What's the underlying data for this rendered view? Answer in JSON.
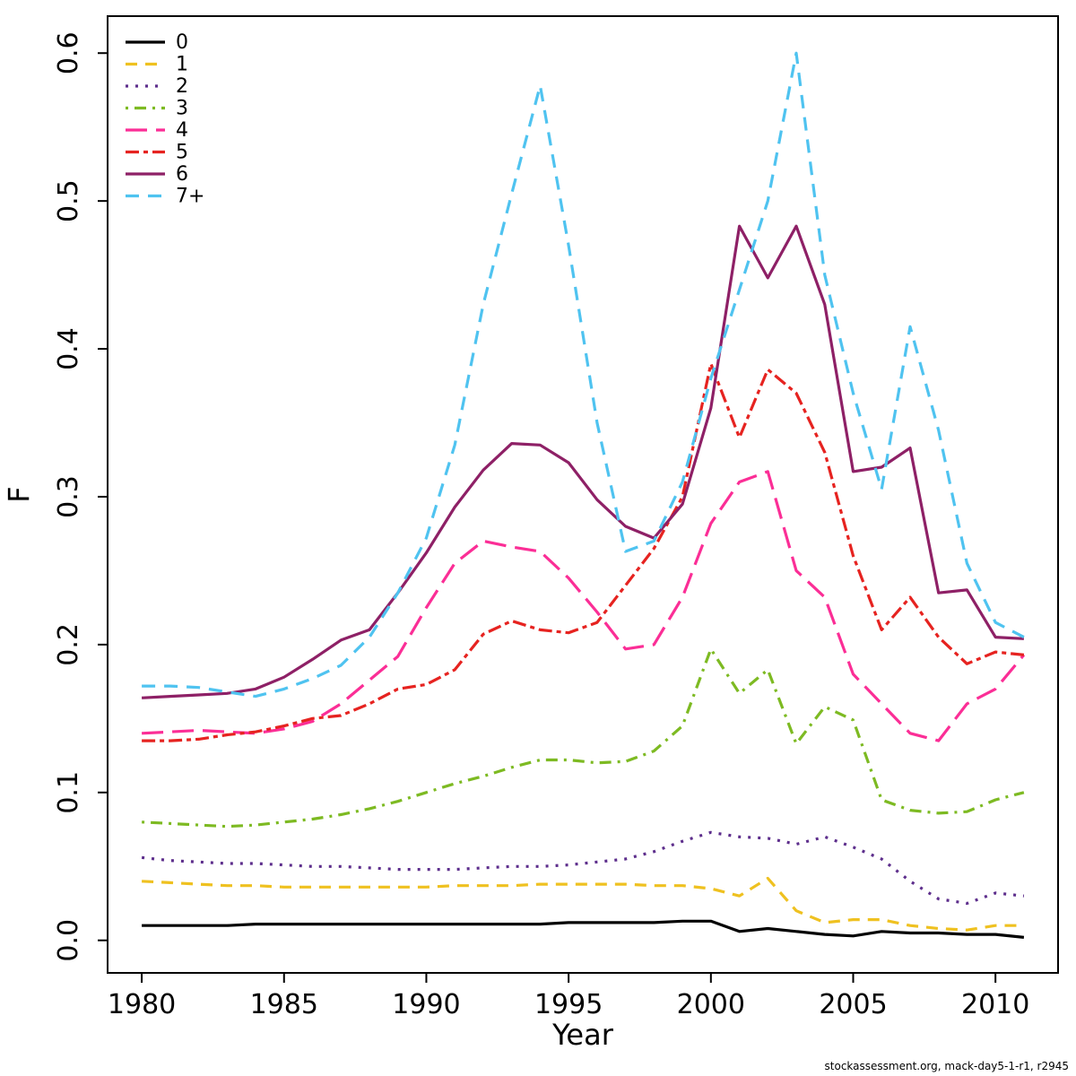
{
  "page": {
    "background": "#ffffff"
  },
  "footer": {
    "text": "stockassessment.org, mack-day5-1-r1, r2945"
  },
  "chart_data": {
    "type": "line",
    "title": "",
    "xlabel": "Year",
    "ylabel": "F",
    "xlim": [
      1978.8,
      2012.2
    ],
    "ylim": [
      -0.022,
      0.625
    ],
    "grid": false,
    "legend_position": "top-left",
    "x_ticks": [
      1980,
      1985,
      1990,
      1995,
      2000,
      2005,
      2010
    ],
    "y_ticks": [
      {
        "v": 0.0,
        "label": "0.0"
      },
      {
        "v": 0.1,
        "label": "0.1"
      },
      {
        "v": 0.2,
        "label": "0.2"
      },
      {
        "v": 0.3,
        "label": "0.3"
      },
      {
        "v": 0.4,
        "label": "0.4"
      },
      {
        "v": 0.5,
        "label": "0.5"
      },
      {
        "v": 0.6,
        "label": "0.6"
      }
    ],
    "x": [
      1980,
      1981,
      1982,
      1983,
      1984,
      1985,
      1986,
      1987,
      1988,
      1989,
      1990,
      1991,
      1992,
      1993,
      1994,
      1995,
      1996,
      1997,
      1998,
      1999,
      2000,
      2001,
      2002,
      2003,
      2004,
      2005,
      2006,
      2007,
      2008,
      2009,
      2010,
      2011
    ],
    "series": [
      {
        "name": "0",
        "color": "#000000",
        "dash": "",
        "width": 3.2,
        "values": [
          0.01,
          0.01,
          0.01,
          0.01,
          0.011,
          0.011,
          0.011,
          0.011,
          0.011,
          0.011,
          0.011,
          0.011,
          0.011,
          0.011,
          0.011,
          0.012,
          0.012,
          0.012,
          0.012,
          0.013,
          0.013,
          0.006,
          0.008,
          0.006,
          0.004,
          0.003,
          0.006,
          0.005,
          0.005,
          0.004,
          0.004,
          0.002
        ]
      },
      {
        "name": "1",
        "color": "#EFC120",
        "dash": "13,9",
        "width": 3.2,
        "values": [
          0.04,
          0.039,
          0.038,
          0.037,
          0.037,
          0.036,
          0.036,
          0.036,
          0.036,
          0.036,
          0.036,
          0.037,
          0.037,
          0.037,
          0.038,
          0.038,
          0.038,
          0.038,
          0.037,
          0.037,
          0.035,
          0.03,
          0.042,
          0.02,
          0.012,
          0.014,
          0.014,
          0.01,
          0.008,
          0.007,
          0.01,
          0.01
        ]
      },
      {
        "name": "2",
        "color": "#5D2E8C",
        "dash": "3,8",
        "width": 3.2,
        "values": [
          0.056,
          0.054,
          0.053,
          0.052,
          0.052,
          0.051,
          0.05,
          0.05,
          0.049,
          0.048,
          0.048,
          0.048,
          0.049,
          0.05,
          0.05,
          0.051,
          0.053,
          0.055,
          0.06,
          0.067,
          0.073,
          0.07,
          0.069,
          0.065,
          0.07,
          0.063,
          0.055,
          0.04,
          0.028,
          0.025,
          0.032,
          0.03
        ]
      },
      {
        "name": "3",
        "color": "#7DBA22",
        "dash": "3,7,13,7",
        "width": 3.2,
        "values": [
          0.08,
          0.079,
          0.078,
          0.077,
          0.078,
          0.08,
          0.082,
          0.085,
          0.089,
          0.094,
          0.1,
          0.106,
          0.111,
          0.117,
          0.122,
          0.122,
          0.12,
          0.121,
          0.128,
          0.145,
          0.197,
          0.167,
          0.183,
          0.133,
          0.158,
          0.149,
          0.095,
          0.088,
          0.086,
          0.087,
          0.095,
          0.1
        ]
      },
      {
        "name": "4",
        "color": "#FB2E96",
        "dash": "24,10",
        "width": 3.2,
        "values": [
          0.14,
          0.141,
          0.142,
          0.141,
          0.14,
          0.143,
          0.148,
          0.16,
          0.176,
          0.192,
          0.225,
          0.255,
          0.27,
          0.266,
          0.263,
          0.245,
          0.222,
          0.197,
          0.2,
          0.232,
          0.282,
          0.31,
          0.317,
          0.25,
          0.232,
          0.18,
          0.16,
          0.14,
          0.135,
          0.16,
          0.17,
          0.193
        ]
      },
      {
        "name": "5",
        "color": "#E62320",
        "dash": "15,5,5,5",
        "width": 3.2,
        "values": [
          0.135,
          0.135,
          0.136,
          0.139,
          0.141,
          0.145,
          0.15,
          0.152,
          0.16,
          0.17,
          0.173,
          0.183,
          0.207,
          0.216,
          0.21,
          0.208,
          0.215,
          0.24,
          0.265,
          0.3,
          0.39,
          0.34,
          0.386,
          0.37,
          0.33,
          0.26,
          0.21,
          0.232,
          0.205,
          0.187,
          0.195,
          0.193
        ]
      },
      {
        "name": "6",
        "color": "#8E2066",
        "dash": "",
        "width": 3.2,
        "values": [
          0.164,
          0.165,
          0.166,
          0.167,
          0.17,
          0.178,
          0.19,
          0.203,
          0.21,
          0.235,
          0.262,
          0.293,
          0.318,
          0.336,
          0.335,
          0.323,
          0.298,
          0.28,
          0.272,
          0.295,
          0.36,
          0.483,
          0.448,
          0.483,
          0.43,
          0.317,
          0.32,
          0.333,
          0.235,
          0.237,
          0.205,
          0.204
        ]
      },
      {
        "name": "7+",
        "color": "#4FC3F0",
        "dash": "15,10",
        "width": 3.2,
        "values": [
          0.172,
          0.172,
          0.171,
          0.168,
          0.165,
          0.17,
          0.177,
          0.186,
          0.205,
          0.235,
          0.272,
          0.335,
          0.43,
          0.505,
          0.578,
          0.47,
          0.35,
          0.263,
          0.27,
          0.31,
          0.38,
          0.44,
          0.5,
          0.6,
          0.45,
          0.37,
          0.305,
          0.415,
          0.345,
          0.255,
          0.215,
          0.205
        ]
      }
    ]
  }
}
